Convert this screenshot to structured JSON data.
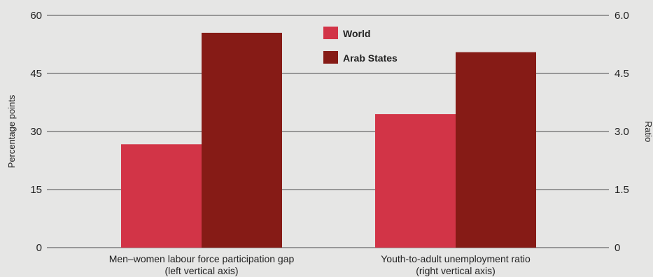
{
  "chart_data": {
    "type": "bar",
    "categories": [
      [
        "Men–women labour force participation gap",
        "(left vertical axis)"
      ],
      [
        "Youth-to-adult unemployment ratio",
        "(right vertical axis)"
      ]
    ],
    "series": [
      {
        "name": "World",
        "color": "#d23447",
        "values": [
          26.7,
          3.45
        ]
      },
      {
        "name": "Arab States",
        "color": "#861b16",
        "values": [
          55.5,
          5.05
        ]
      }
    ],
    "left_axis": {
      "label": "Percentage points",
      "ylim": [
        0,
        60
      ],
      "ticks": [
        "0",
        "15",
        "30",
        "45",
        "60"
      ]
    },
    "right_axis": {
      "label": "Ratio",
      "ylim": [
        0,
        6.0
      ],
      "ticks": [
        "0",
        "1.5",
        "3.0",
        "4.5",
        "6.0"
      ]
    },
    "category_axis": [
      "left",
      "right"
    ],
    "grid": true,
    "legend": "top-center"
  }
}
